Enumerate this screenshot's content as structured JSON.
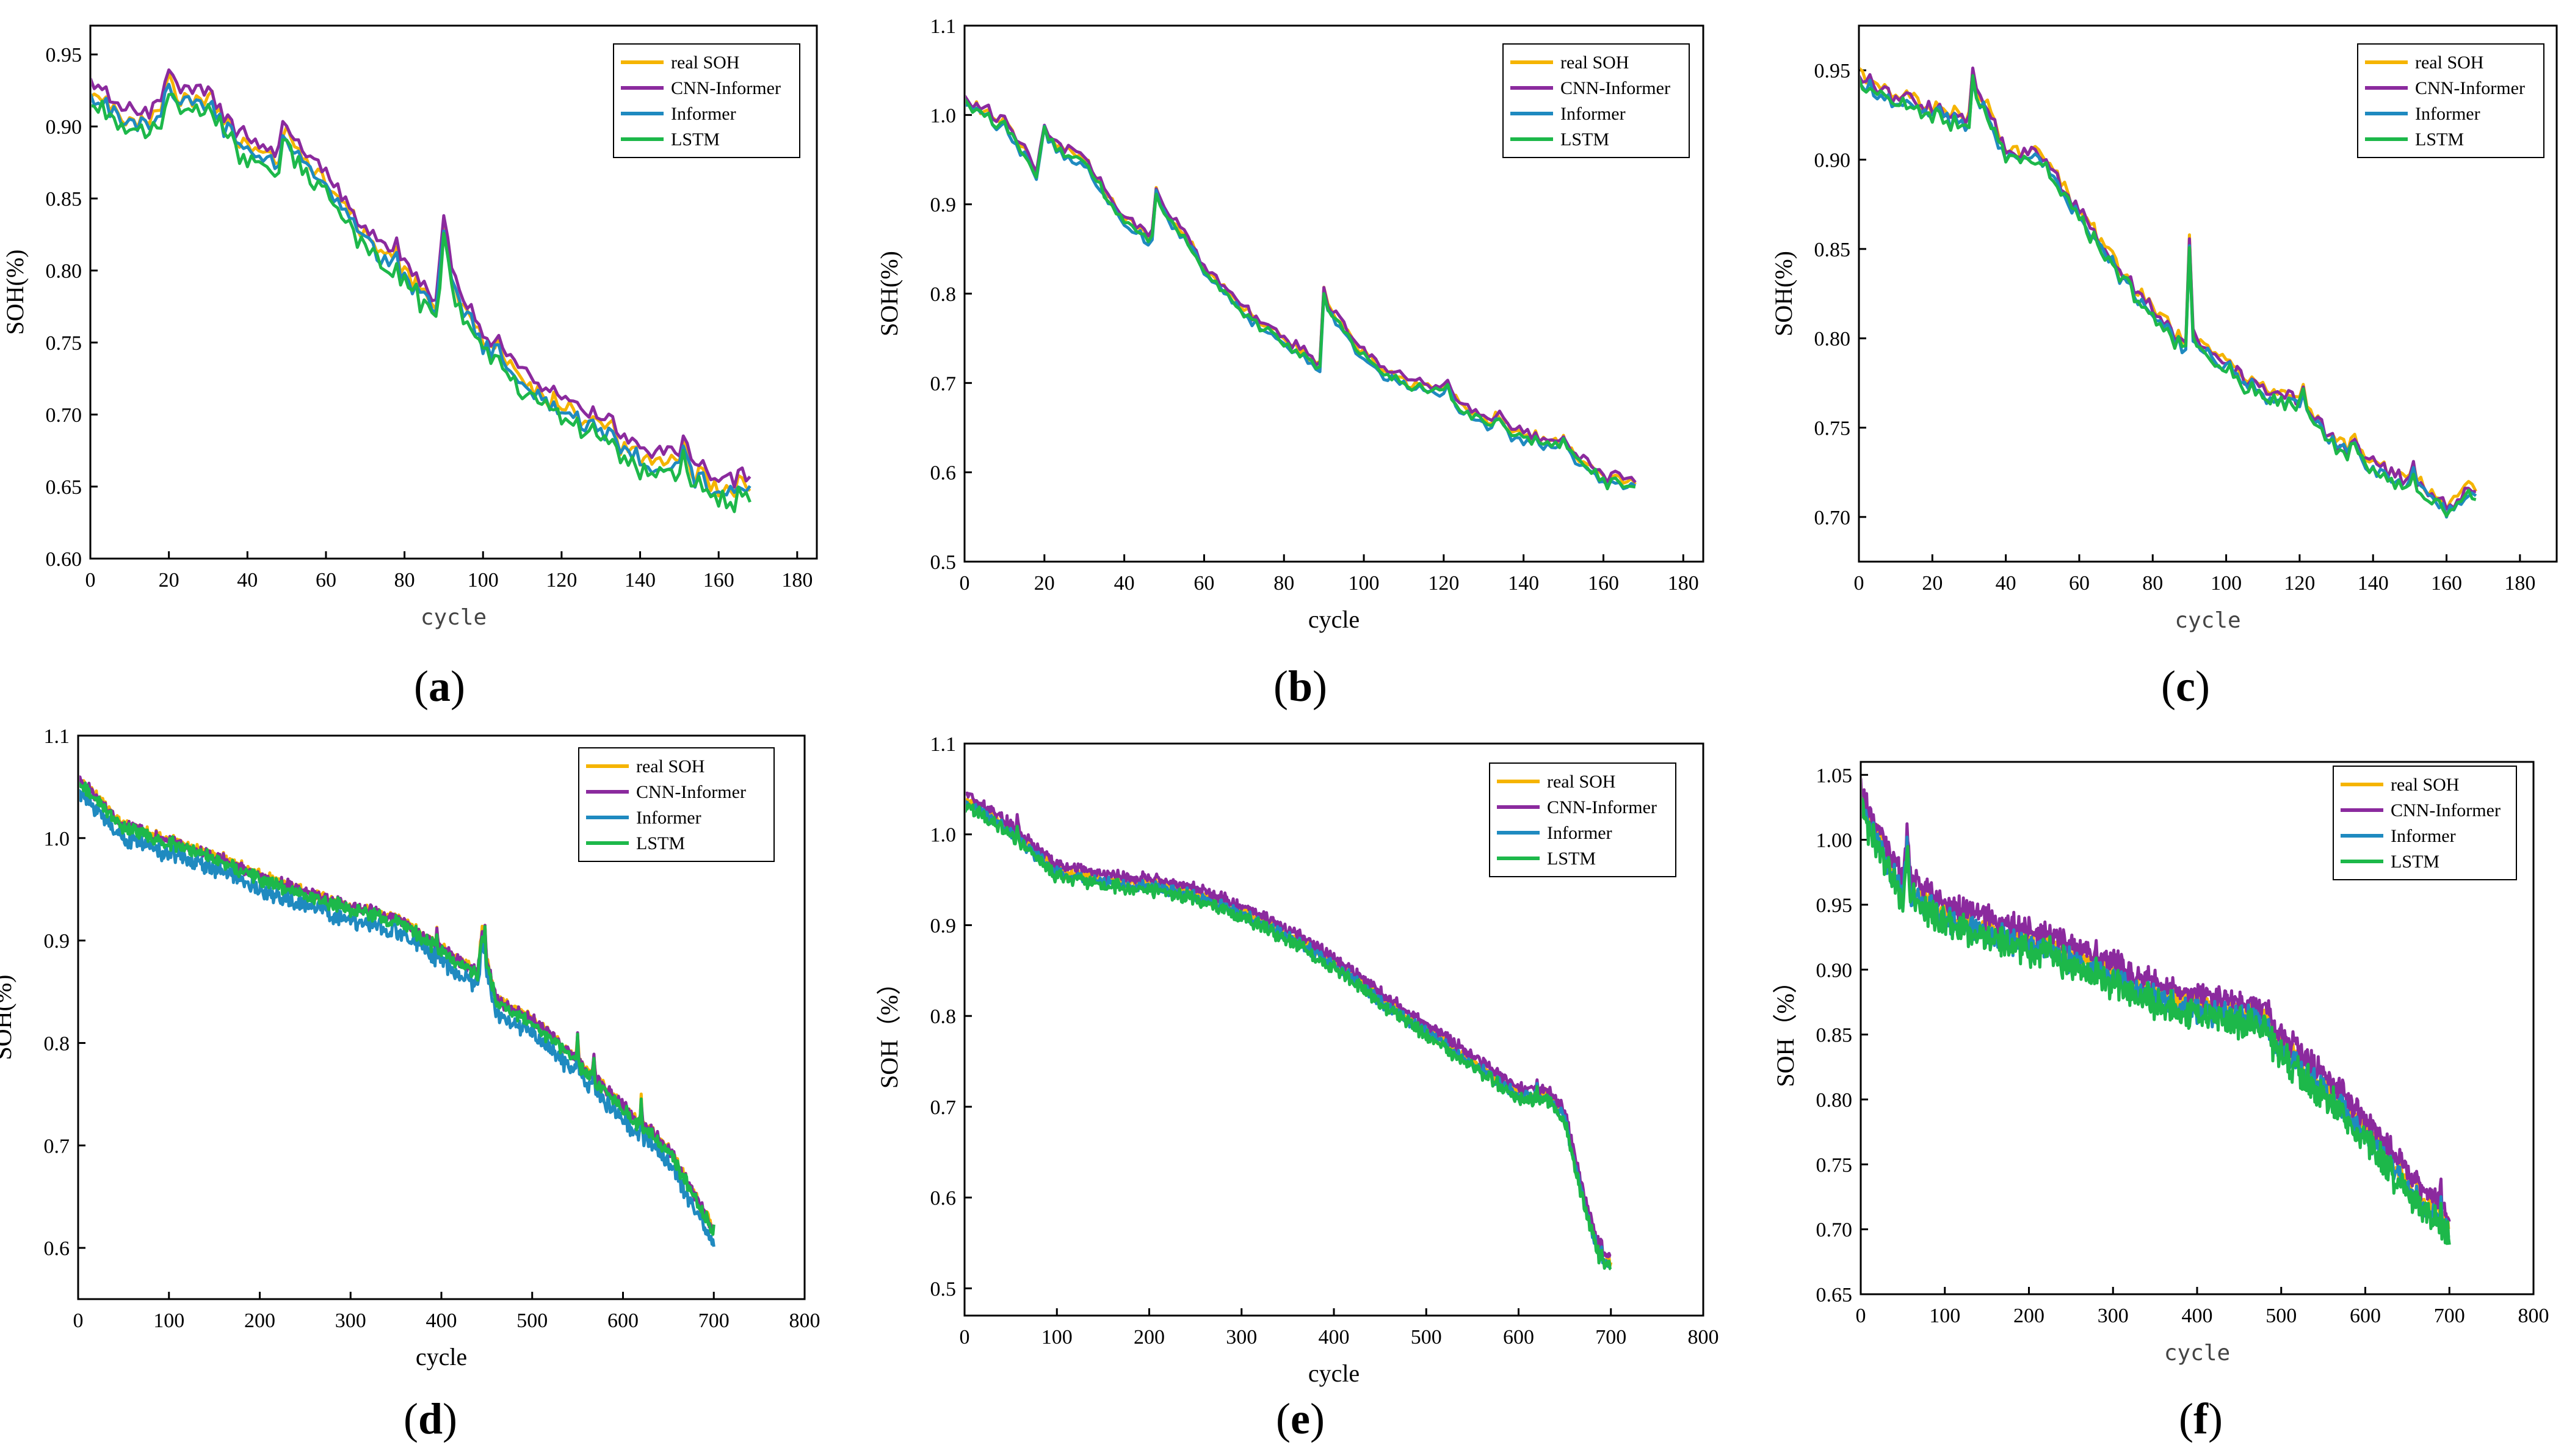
{
  "figure": {
    "colors": {
      "real SOH": "#F5B400",
      "CNN-Informer": "#8B2A9E",
      "Informer": "#1F8AC0",
      "LSTM": "#1DB84A"
    }
  },
  "chart_data": [
    {
      "id": "a",
      "type": "line",
      "panel_prefix": "(",
      "panel_letter": "a",
      "panel_suffix": ")",
      "xlabel": "cycle",
      "ylabel": "SOH(%)",
      "xlim": [
        0,
        185
      ],
      "ylim": [
        0.6,
        0.97
      ],
      "xticks": [
        0,
        20,
        40,
        60,
        80,
        100,
        120,
        140,
        160,
        180
      ],
      "yticks": [
        0.6,
        0.65,
        0.7,
        0.75,
        0.8,
        0.85,
        0.9,
        0.95
      ],
      "ytick_labels": [
        "0.60",
        "0.65",
        "0.70",
        "0.75",
        "0.80",
        "0.85",
        "0.90",
        "0.95"
      ],
      "legend": [
        "real SOH",
        "CNN-Informer",
        "Informer",
        "LSTM"
      ],
      "legend_position": "top-right",
      "n_points": 169,
      "anchors": [
        [
          0,
          0.922
        ],
        [
          10,
          0.905
        ],
        [
          15,
          0.9
        ],
        [
          20,
          0.925
        ],
        [
          30,
          0.915
        ],
        [
          40,
          0.885
        ],
        [
          48,
          0.875
        ],
        [
          50,
          0.893
        ],
        [
          60,
          0.86
        ],
        [
          70,
          0.825
        ],
        [
          80,
          0.8
        ],
        [
          88,
          0.775
        ],
        [
          90,
          0.805
        ],
        [
          100,
          0.75
        ],
        [
          110,
          0.725
        ],
        [
          120,
          0.705
        ],
        [
          130,
          0.69
        ],
        [
          140,
          0.67
        ],
        [
          150,
          0.665
        ],
        [
          160,
          0.65
        ],
        [
          168,
          0.65
        ]
      ],
      "spikes": [
        [
          20,
          0.01
        ],
        [
          31,
          0.01
        ],
        [
          49,
          0.012
        ],
        [
          78,
          0.008
        ],
        [
          90,
          0.03
        ],
        [
          104,
          0.012
        ],
        [
          133,
          0.01
        ],
        [
          151,
          0.015
        ]
      ],
      "series": [
        {
          "name": "real SOH",
          "offset": 0.0,
          "noise": 0.004
        },
        {
          "name": "CNN-Informer",
          "offset": 0.006,
          "noise": 0.004
        },
        {
          "name": "Informer",
          "offset": -0.003,
          "noise": 0.004
        },
        {
          "name": "LSTM",
          "offset": -0.008,
          "noise": 0.006
        }
      ]
    },
    {
      "id": "b",
      "type": "line",
      "panel_prefix": "(",
      "panel_letter": "b",
      "panel_suffix": ")",
      "xlabel": "cycle",
      "ylabel": "SOH(%)",
      "xlim": [
        0,
        185
      ],
      "ylim": [
        0.5,
        1.1
      ],
      "xticks": [
        0,
        20,
        40,
        60,
        80,
        100,
        120,
        140,
        160,
        180
      ],
      "yticks": [
        0.5,
        0.6,
        0.7,
        0.8,
        0.9,
        1.0,
        1.1
      ],
      "ytick_labels": [
        "0.5",
        "0.6",
        "0.7",
        "0.8",
        "0.9",
        "1.0",
        "1.1"
      ],
      "legend": [
        "real SOH",
        "CNN-Informer",
        "Informer",
        "LSTM"
      ],
      "legend_position": "top-right",
      "n_points": 169,
      "anchors": [
        [
          0,
          1.015
        ],
        [
          10,
          0.99
        ],
        [
          18,
          0.935
        ],
        [
          20,
          0.975
        ],
        [
          30,
          0.945
        ],
        [
          40,
          0.88
        ],
        [
          47,
          0.86
        ],
        [
          48,
          0.905
        ],
        [
          60,
          0.83
        ],
        [
          70,
          0.78
        ],
        [
          80,
          0.745
        ],
        [
          89,
          0.72
        ],
        [
          90,
          0.79
        ],
        [
          100,
          0.73
        ],
        [
          110,
          0.7
        ],
        [
          120,
          0.69
        ],
        [
          130,
          0.66
        ],
        [
          140,
          0.64
        ],
        [
          150,
          0.63
        ],
        [
          160,
          0.59
        ],
        [
          168,
          0.59
        ]
      ],
      "spikes": [
        [
          20,
          0.01
        ],
        [
          31,
          0.012
        ],
        [
          48,
          0.01
        ],
        [
          90,
          0.01
        ],
        [
          121,
          0.015
        ],
        [
          134,
          0.012
        ],
        [
          150,
          0.01
        ]
      ],
      "series": [
        {
          "name": "real SOH",
          "offset": 0.002,
          "noise": 0.004
        },
        {
          "name": "CNN-Informer",
          "offset": 0.004,
          "noise": 0.004
        },
        {
          "name": "Informer",
          "offset": -0.004,
          "noise": 0.004
        },
        {
          "name": "LSTM",
          "offset": -0.002,
          "noise": 0.004
        }
      ]
    },
    {
      "id": "c",
      "type": "line",
      "panel_prefix": "(",
      "panel_letter": "c",
      "panel_suffix": ")",
      "xlabel": "cycle",
      "ylabel": "SOH(%)",
      "xlim": [
        0,
        190
      ],
      "ylim": [
        0.675,
        0.975
      ],
      "xticks": [
        0,
        20,
        40,
        60,
        80,
        100,
        120,
        140,
        160,
        180
      ],
      "yticks": [
        0.7,
        0.75,
        0.8,
        0.85,
        0.9,
        0.95
      ],
      "ytick_labels": [
        "0.70",
        "0.75",
        "0.80",
        "0.85",
        "0.90",
        "0.95"
      ],
      "legend": [
        "real SOH",
        "CNN-Informer",
        "Informer",
        "LSTM"
      ],
      "legend_position": "top-right",
      "n_points": 169,
      "anchors": [
        [
          0,
          0.945
        ],
        [
          10,
          0.935
        ],
        [
          20,
          0.928
        ],
        [
          30,
          0.92
        ],
        [
          31,
          0.942
        ],
        [
          40,
          0.905
        ],
        [
          50,
          0.9
        ],
        [
          60,
          0.87
        ],
        [
          70,
          0.84
        ],
        [
          80,
          0.815
        ],
        [
          89,
          0.795
        ],
        [
          90,
          0.85
        ],
        [
          91,
          0.8
        ],
        [
          100,
          0.785
        ],
        [
          110,
          0.77
        ],
        [
          120,
          0.765
        ],
        [
          130,
          0.74
        ],
        [
          140,
          0.73
        ],
        [
          150,
          0.72
        ],
        [
          160,
          0.705
        ],
        [
          168,
          0.715
        ]
      ],
      "spikes": [
        [
          31,
          0.005
        ],
        [
          90,
          0.005
        ],
        [
          121,
          0.008
        ],
        [
          135,
          0.008
        ],
        [
          151,
          0.01
        ]
      ],
      "series": [
        {
          "name": "real SOH",
          "offset": 0.002,
          "noise": 0.003
        },
        {
          "name": "CNN-Informer",
          "offset": 0.001,
          "noise": 0.003
        },
        {
          "name": "Informer",
          "offset": -0.002,
          "noise": 0.003
        },
        {
          "name": "LSTM",
          "offset": -0.003,
          "noise": 0.003
        }
      ]
    },
    {
      "id": "d",
      "type": "line",
      "panel_prefix": "(",
      "panel_letter": "d",
      "panel_suffix": ")",
      "xlabel": "cycle",
      "ylabel": "SOH(%)",
      "xlim": [
        0,
        800
      ],
      "ylim": [
        0.55,
        1.1
      ],
      "xticks": [
        0,
        100,
        200,
        300,
        400,
        500,
        600,
        700,
        800
      ],
      "yticks": [
        0.6,
        0.7,
        0.8,
        0.9,
        1.0,
        1.1
      ],
      "ytick_labels": [
        "0.6",
        "0.7",
        "0.8",
        "0.9",
        "1.0",
        "1.1"
      ],
      "legend": [
        "real SOH",
        "CNN-Informer",
        "Informer",
        "LSTM"
      ],
      "legend_position": "top-right",
      "n_points": 701,
      "anchors": [
        [
          0,
          1.055
        ],
        [
          50,
          1.01
        ],
        [
          100,
          0.995
        ],
        [
          150,
          0.98
        ],
        [
          200,
          0.96
        ],
        [
          250,
          0.945
        ],
        [
          300,
          0.93
        ],
        [
          350,
          0.92
        ],
        [
          400,
          0.89
        ],
        [
          440,
          0.865
        ],
        [
          445,
          0.905
        ],
        [
          450,
          0.88
        ],
        [
          460,
          0.84
        ],
        [
          500,
          0.82
        ],
        [
          550,
          0.78
        ],
        [
          600,
          0.735
        ],
        [
          650,
          0.695
        ],
        [
          700,
          0.615
        ]
      ],
      "spikes": [
        [
          395,
          0.015
        ],
        [
          448,
          0.02
        ],
        [
          550,
          0.025
        ],
        [
          568,
          0.02
        ],
        [
          620,
          0.025
        ]
      ],
      "series": [
        {
          "name": "real SOH",
          "offset": 0.004,
          "noise": 0.003
        },
        {
          "name": "CNN-Informer",
          "offset": 0.003,
          "noise": 0.004
        },
        {
          "name": "Informer",
          "offset": -0.01,
          "noise": 0.007
        },
        {
          "name": "LSTM",
          "offset": 0.0,
          "noise": 0.005
        }
      ]
    },
    {
      "id": "e",
      "type": "line",
      "panel_prefix": "(",
      "panel_letter": "e",
      "panel_suffix": ")",
      "xlabel": "cycle",
      "ylabel": "SOH（%）",
      "xlim": [
        0,
        800
      ],
      "ylim": [
        0.47,
        1.1
      ],
      "xticks": [
        0,
        100,
        200,
        300,
        400,
        500,
        600,
        700,
        800
      ],
      "yticks": [
        0.5,
        0.6,
        0.7,
        0.8,
        0.9,
        1.0,
        1.1
      ],
      "ytick_labels": [
        "0.5",
        "0.6",
        "0.7",
        "0.8",
        "0.9",
        "1.0",
        "1.1"
      ],
      "legend": [
        "real SOH",
        "CNN-Informer",
        "Informer",
        "LSTM"
      ],
      "legend_position": "top-right",
      "n_points": 701,
      "anchors": [
        [
          0,
          1.04
        ],
        [
          50,
          1.005
        ],
        [
          100,
          0.96
        ],
        [
          150,
          0.95
        ],
        [
          200,
          0.945
        ],
        [
          250,
          0.935
        ],
        [
          300,
          0.915
        ],
        [
          350,
          0.89
        ],
        [
          400,
          0.86
        ],
        [
          450,
          0.82
        ],
        [
          500,
          0.785
        ],
        [
          550,
          0.75
        ],
        [
          600,
          0.715
        ],
        [
          630,
          0.715
        ],
        [
          650,
          0.69
        ],
        [
          670,
          0.6
        ],
        [
          690,
          0.53
        ],
        [
          700,
          0.53
        ]
      ],
      "spikes": [
        [
          57,
          0.015
        ],
        [
          620,
          0.01
        ],
        [
          690,
          0.02
        ]
      ],
      "series": [
        {
          "name": "real SOH",
          "offset": 0.0,
          "noise": 0.004
        },
        {
          "name": "CNN-Informer",
          "offset": 0.006,
          "noise": 0.004
        },
        {
          "name": "Informer",
          "offset": -0.003,
          "noise": 0.004
        },
        {
          "name": "LSTM",
          "offset": -0.006,
          "noise": 0.005
        }
      ]
    },
    {
      "id": "f",
      "type": "line",
      "panel_prefix": "(",
      "panel_letter": "f",
      "panel_suffix": ")",
      "xlabel": "cycle",
      "ylabel": "SOH（%）",
      "xlim": [
        0,
        800
      ],
      "ylim": [
        0.65,
        1.06
      ],
      "xticks": [
        0,
        100,
        200,
        300,
        400,
        500,
        600,
        700,
        800
      ],
      "yticks": [
        0.65,
        0.7,
        0.75,
        0.8,
        0.85,
        0.9,
        0.95,
        1.0,
        1.05
      ],
      "ytick_labels": [
        "0.65",
        "0.70",
        "0.75",
        "0.80",
        "0.85",
        "0.90",
        "0.95",
        "1.00",
        "1.05"
      ],
      "legend": [
        "real SOH",
        "CNN-Informer",
        "Informer",
        "LSTM"
      ],
      "legend_position": "top-right",
      "n_points": 701,
      "anchors": [
        [
          0,
          1.03
        ],
        [
          20,
          1.0
        ],
        [
          50,
          0.96
        ],
        [
          55,
          0.99
        ],
        [
          60,
          0.96
        ],
        [
          100,
          0.94
        ],
        [
          150,
          0.93
        ],
        [
          200,
          0.92
        ],
        [
          250,
          0.91
        ],
        [
          300,
          0.895
        ],
        [
          350,
          0.88
        ],
        [
          400,
          0.87
        ],
        [
          450,
          0.865
        ],
        [
          480,
          0.86
        ],
        [
          500,
          0.84
        ],
        [
          550,
          0.81
        ],
        [
          600,
          0.775
        ],
        [
          650,
          0.735
        ],
        [
          700,
          0.7
        ]
      ],
      "spikes": [
        [
          55,
          0.01
        ],
        [
          225,
          0.01
        ],
        [
          690,
          0.015
        ]
      ],
      "series": [
        {
          "name": "real SOH",
          "offset": 0.002,
          "noise": 0.006
        },
        {
          "name": "CNN-Informer",
          "offset": 0.01,
          "noise": 0.006
        },
        {
          "name": "Informer",
          "offset": -0.002,
          "noise": 0.006
        },
        {
          "name": "LSTM",
          "offset": -0.006,
          "noise": 0.009
        }
      ]
    }
  ]
}
